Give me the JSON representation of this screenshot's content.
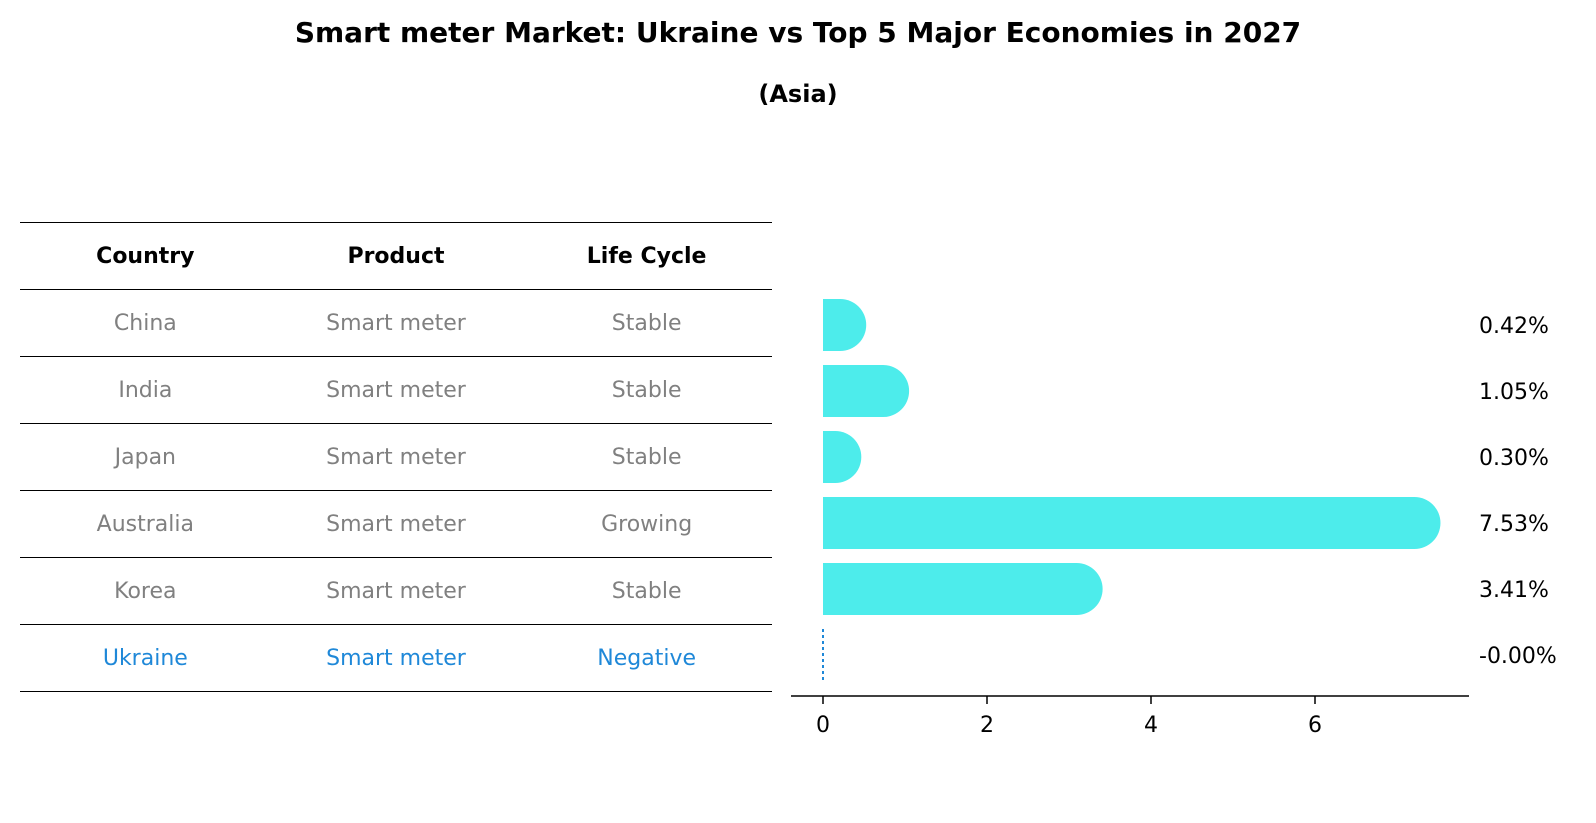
{
  "title": "Smart meter Market: Ukraine vs Top 5 Major Economies in 2027",
  "subtitle": "(Asia)",
  "table": {
    "headers": [
      "Country",
      "Product",
      "Life Cycle"
    ],
    "rows": [
      {
        "country": "China",
        "product": "Smart meter",
        "life_cycle": "Stable"
      },
      {
        "country": "India",
        "product": "Smart meter",
        "life_cycle": "Stable"
      },
      {
        "country": "Japan",
        "product": "Smart meter",
        "life_cycle": "Stable"
      },
      {
        "country": "Australia",
        "product": "Smart meter",
        "life_cycle": "Growing"
      },
      {
        "country": "Korea",
        "product": "Smart meter",
        "life_cycle": "Stable"
      },
      {
        "country": "Ukraine",
        "product": "Smart meter",
        "life_cycle": "Negative"
      }
    ]
  },
  "colors": {
    "bar": "#4deceb",
    "highlight": "#1f88d8",
    "muted_text": "#808080"
  },
  "chart_data": {
    "type": "bar",
    "orientation": "horizontal",
    "categories": [
      "China",
      "India",
      "Japan",
      "Australia",
      "Korea",
      "Ukraine"
    ],
    "values": [
      0.42,
      1.05,
      0.3,
      7.53,
      3.41,
      -0.0
    ],
    "value_labels": [
      "0.42%",
      "1.05%",
      "0.30%",
      "7.53%",
      "3.41%",
      "-0.00%"
    ],
    "xlim": [
      -0.4,
      7.9
    ],
    "xticks": [
      0,
      2,
      4,
      6
    ],
    "xtick_labels": [
      "0",
      "2",
      "4",
      "6"
    ],
    "grid": false,
    "legend": "none"
  }
}
